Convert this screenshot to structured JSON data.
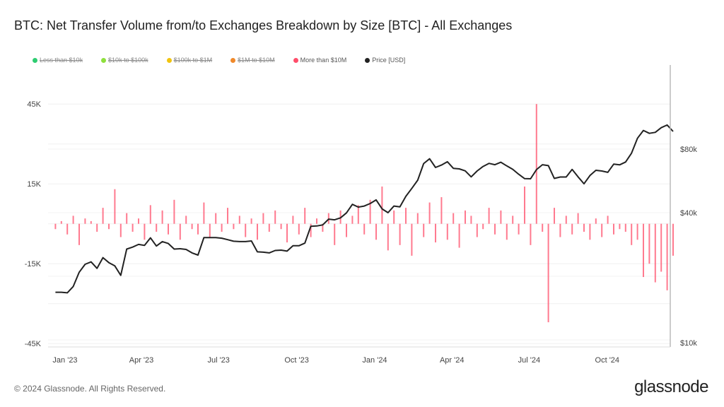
{
  "title": "BTC: Net Transfer Volume from/to Exchanges Breakdown by Size [BTC] - All Exchanges",
  "legend": [
    {
      "label": "Less than $10k",
      "color": "#2ecc71",
      "enabled": false
    },
    {
      "label": "$10k to $100k",
      "color": "#8ee03c",
      "enabled": false
    },
    {
      "label": "$100k to $1M",
      "color": "#f1c40f",
      "enabled": false
    },
    {
      "label": "$1M to $10M",
      "color": "#f0892a",
      "enabled": false
    },
    {
      "label": "More than $10M",
      "color": "#ff4d6a",
      "enabled": true
    },
    {
      "label": "Price [USD]",
      "color": "#222222",
      "enabled": true
    }
  ],
  "footer": "© 2024 Glassnode. All Rights Reserved.",
  "logo": "glassnode",
  "chart_data": {
    "type": "bar+line",
    "x_start": "2022-12-19",
    "x_step": "weekly",
    "x_ticks": [
      "Jan '23",
      "Apr '23",
      "Jul '23",
      "Oct '23",
      "Jan '24",
      "Apr '24",
      "Jul '24",
      "Oct '24"
    ],
    "y_left": {
      "ticks": [
        "45K",
        "15K",
        "-15K",
        "-45K"
      ],
      "range_k": [
        -45,
        52
      ]
    },
    "y_right": {
      "scale": "log",
      "ticks": [
        "$80k",
        "$40k",
        "$10k"
      ]
    },
    "grid": true,
    "series": [
      {
        "name": "More than $10M",
        "type": "bar",
        "color": "#ff4d6a",
        "unit": "K BTC",
        "values": [
          -2,
          1,
          -4,
          3,
          -8,
          2,
          1,
          -3,
          6,
          -2,
          13,
          -5,
          4,
          -3,
          2,
          -6,
          7,
          -3,
          5,
          -4,
          9,
          -6,
          3,
          -2,
          -4,
          8,
          -5,
          4,
          -3,
          6,
          -2,
          3,
          -5,
          2,
          -6,
          4,
          -3,
          5,
          -2,
          -7,
          3,
          -4,
          6,
          -5,
          2,
          -3,
          4,
          -8,
          5,
          -5,
          3,
          7,
          -4,
          9,
          -6,
          14,
          -10,
          5,
          -8,
          6,
          -12,
          4,
          -5,
          8,
          -7,
          10,
          -6,
          4,
          -9,
          5,
          3,
          -5,
          -2,
          6,
          -4,
          5,
          -6,
          3,
          -4,
          14,
          -8,
          45,
          -3,
          -37,
          6,
          -5,
          3,
          -4,
          4,
          -3,
          -6,
          2,
          -5,
          3,
          -4,
          -2,
          -3,
          -8,
          -6,
          -20,
          -15,
          -22,
          -18,
          -25,
          -12
        ]
      },
      {
        "name": "Price [USD]",
        "type": "line",
        "color": "#222222",
        "unit": "K USD",
        "values": [
          16.8,
          16.8,
          16.7,
          17.9,
          20.9,
          22.8,
          23.4,
          21.8,
          24.5,
          23.2,
          22.4,
          20.2,
          26.9,
          27.5,
          28.3,
          28.0,
          30.4,
          27.8,
          29.2,
          28.6,
          26.9,
          27.0,
          26.8,
          25.8,
          25.2,
          30.5,
          30.5,
          30.5,
          30.3,
          29.8,
          29.3,
          29.2,
          29.2,
          29.4,
          26.1,
          26.0,
          25.8,
          26.5,
          26.6,
          26.3,
          27.9,
          27.9,
          28.7,
          34.5,
          34.6,
          35.0,
          37.3,
          37.0,
          37.8,
          39.9,
          43.8,
          42.5,
          43.0,
          44.2,
          46.0,
          41.7,
          40.0,
          43.0,
          42.6,
          47.8,
          52.1,
          57.0,
          68.3,
          72.0,
          65.5,
          67.2,
          69.7,
          64.9,
          64.5,
          63.1,
          59.1,
          63.0,
          66.2,
          68.5,
          67.5,
          69.3,
          66.6,
          64.2,
          60.8,
          58.0,
          57.9,
          64.0,
          67.5,
          66.8,
          58.1,
          59.0,
          59.0,
          64.1,
          59.1,
          54.8,
          60.0,
          63.5,
          63.0,
          62.1,
          67.9,
          67.4,
          69.5,
          76.5,
          90.0,
          98.0,
          95.0,
          96.0,
          101.0,
          104.0,
          97.0
        ]
      }
    ]
  }
}
